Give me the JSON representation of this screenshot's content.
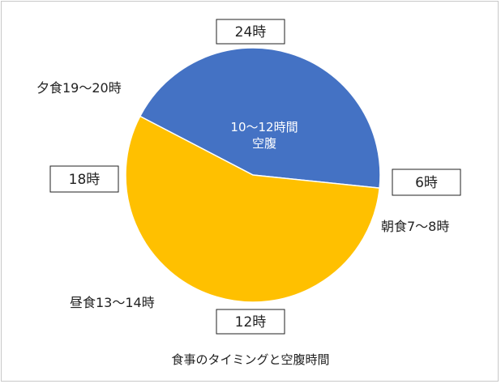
{
  "chart_data": {
    "type": "pie",
    "title": "食事のタイミングと空腹時間",
    "slices": [
      {
        "label": "10〜12時間\n空腹",
        "value": 44,
        "color": "#4472C4"
      },
      {
        "label": "",
        "value": 56,
        "color": "#FFC000"
      }
    ],
    "clock_labels": [
      "24時",
      "6時",
      "12時",
      "18時"
    ],
    "meal_labels": [
      "夕食19〜20時",
      "朝食7〜8時",
      "昼食13〜14時"
    ],
    "legend": "none"
  }
}
